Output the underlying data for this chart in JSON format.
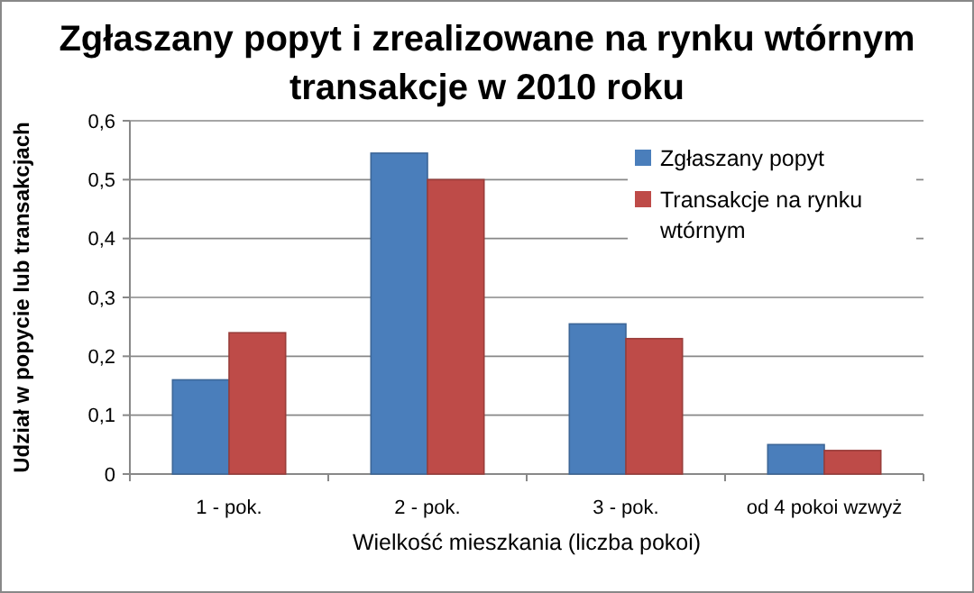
{
  "chart_data": {
    "type": "bar",
    "title": "Zgłaszany popyt i zrealizowane na rynku wtórnym transakcje w 2010 roku",
    "xlabel": "Wielkość mieszkania (liczba pokoi)",
    "ylabel": "Udział w popycie lub transakcjach",
    "categories": [
      "1 - pok.",
      "2 - pok.",
      "3 - pok.",
      "od 4 pokoi wzwyż"
    ],
    "series": [
      {
        "name": "Zgłaszany popyt",
        "color": "#4a7ebb",
        "values": [
          0.16,
          0.545,
          0.255,
          0.05
        ]
      },
      {
        "name": "Transakcje na rynku wtórnym",
        "color": "#be4b48",
        "values": [
          0.24,
          0.5,
          0.23,
          0.04
        ]
      }
    ],
    "ylim": [
      0,
      0.6
    ],
    "yticks": [
      {
        "value": 0,
        "label": "0"
      },
      {
        "value": 0.1,
        "label": "0,1"
      },
      {
        "value": 0.2,
        "label": "0,2"
      },
      {
        "value": 0.3,
        "label": "0,3"
      },
      {
        "value": 0.4,
        "label": "0,4"
      },
      {
        "value": 0.5,
        "label": "0,5"
      },
      {
        "value": 0.6,
        "label": "0,6"
      }
    ],
    "grid": "y",
    "legend": "top right"
  }
}
